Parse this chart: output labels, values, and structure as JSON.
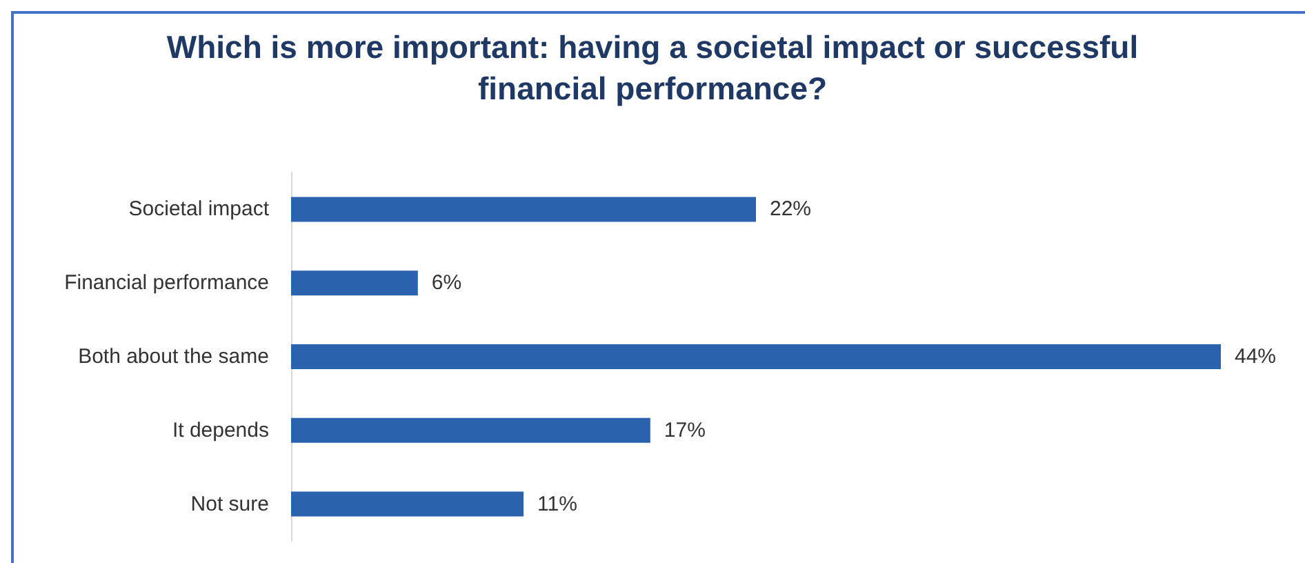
{
  "chart_data": {
    "type": "bar",
    "orientation": "horizontal",
    "title": "Which is more important: having a societal impact or successful\nfinancial performance?",
    "categories": [
      "Societal impact",
      "Financial performance",
      "Both about the same",
      "It depends",
      "Not sure"
    ],
    "values": [
      22,
      6,
      44,
      17,
      11
    ],
    "value_labels": [
      "22%",
      "6%",
      "44%",
      "17%",
      "11%"
    ],
    "color": "#2b62ad"
  }
}
